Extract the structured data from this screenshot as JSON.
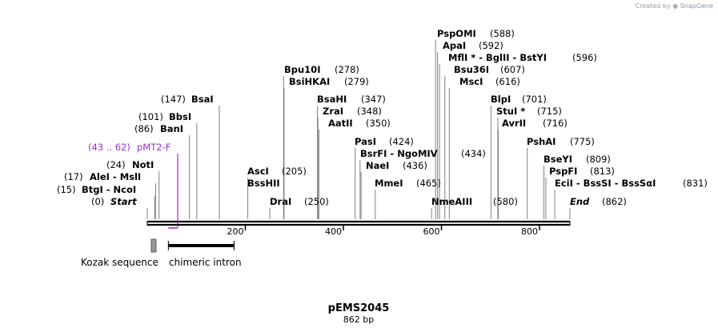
{
  "watermark": {
    "prefix": "Created by",
    "brand": "SnapGene"
  },
  "map": {
    "name": "pEMS2045",
    "length_label": "862 bp",
    "length_bp": 862,
    "ruler": [
      {
        "label": "200",
        "bp": 200
      },
      {
        "label": "400",
        "bp": 400
      },
      {
        "label": "600",
        "bp": 600
      },
      {
        "label": "800",
        "bp": 800
      }
    ]
  },
  "colors": {
    "text": "#000000",
    "primer": "#9b31c9",
    "line": "#808080",
    "backbone": "#000000",
    "kozak_fill": "#999999"
  },
  "left_sites": [
    {
      "pos": "(147)",
      "text": "BsaI",
      "bp": 147
    },
    {
      "pos": "(101)",
      "text": "BbsI",
      "bp": 101
    },
    {
      "pos": "(86)",
      "text": "BanI",
      "bp": 86
    },
    {
      "pos": "(24)",
      "text": "NotI",
      "bp": 24
    },
    {
      "pos": "(17)",
      "text": "AleI  - MslI",
      "bp": 17
    },
    {
      "pos": "(15)",
      "text": "BtgI  - NcoI",
      "bp": 15
    },
    {
      "pos": "(0)",
      "text": "Start",
      "bp": 0,
      "italic": true
    }
  ],
  "primer": {
    "pos": "(43 .. 62)",
    "text": "pMT2-F",
    "start_bp": 43,
    "end_bp": 62
  },
  "right_sites": [
    {
      "text": "PspOMI",
      "pos": "(588)",
      "bp": 588
    },
    {
      "text": "ApaI",
      "pos": "(592)",
      "bp": 592
    },
    {
      "text": "MflI * - BglII  - BstYI",
      "pos": "(596)",
      "bp": 596
    },
    {
      "text": "Bsu36I",
      "pos": "(607)",
      "bp": 607
    },
    {
      "text": "MscI",
      "pos": "(616)",
      "bp": 616
    },
    {
      "text": "Bpu10I",
      "pos": "(278)",
      "bp": 278
    },
    {
      "text": "BsiHKAI",
      "pos": "(279)",
      "bp": 279
    },
    {
      "text": "BsaHI",
      "pos": "(347)",
      "bp": 347
    },
    {
      "text": "ZraI",
      "pos": "(348)",
      "bp": 348
    },
    {
      "text": "AatII",
      "pos": "(350)",
      "bp": 350
    },
    {
      "text": "PasI",
      "pos": "(424)",
      "bp": 424
    },
    {
      "text": "BsrFI  - NgoMIV",
      "pos": "(434)",
      "bp": 434
    },
    {
      "text": "NaeI",
      "pos": "(436)",
      "bp": 436
    },
    {
      "text": "MmeI",
      "pos": "(465)",
      "bp": 465
    },
    {
      "text": "AscI",
      "pos": "(205)",
      "bp": 205
    },
    {
      "text": "BssHII",
      "pos": "",
      "bp": 205
    },
    {
      "text": "DraI",
      "pos": "(250)",
      "bp": 250
    },
    {
      "text": "NmeAIII",
      "pos": "(580)",
      "bp": 580
    },
    {
      "text": "BlpI",
      "pos": "(701)",
      "bp": 701
    },
    {
      "text": "StuI *",
      "pos": "(715)",
      "bp": 715
    },
    {
      "text": "AvrII",
      "pos": "(716)",
      "bp": 716
    },
    {
      "text": "PshAI",
      "pos": "(775)",
      "bp": 775
    },
    {
      "text": "BseYI",
      "pos": "(809)",
      "bp": 809
    },
    {
      "text": "PspFI",
      "pos": "(813)",
      "bp": 813
    },
    {
      "text": "EciI  - BssSI  - BssSαI",
      "pos": "(831)",
      "bp": 831
    },
    {
      "text": "End",
      "pos": "(862)",
      "bp": 862,
      "italic": true
    }
  ],
  "features": [
    {
      "label": "Kozak sequence",
      "start_bp": 13,
      "end_bp": 22
    },
    {
      "label": "chimeric intron",
      "start_bp": 43,
      "end_bp": 177
    }
  ]
}
